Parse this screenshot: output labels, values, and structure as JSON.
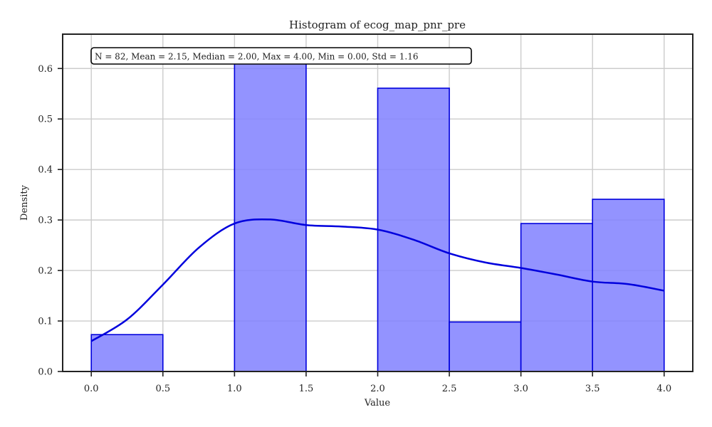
{
  "chart_data": {
    "type": "bar",
    "title": "Histogram of ecog_map_pnr_pre",
    "xlabel": "Value",
    "ylabel": "Density",
    "xlim": [
      -0.2,
      4.2
    ],
    "ylim": [
      0,
      0.668
    ],
    "xticks": [
      "0.0",
      "0.5",
      "1.0",
      "1.5",
      "2.0",
      "2.5",
      "3.0",
      "3.5",
      "4.0"
    ],
    "yticks": [
      "0.0",
      "0.1",
      "0.2",
      "0.3",
      "0.4",
      "0.5",
      "0.6"
    ],
    "grid": true,
    "bins": [
      {
        "x0": 0.0,
        "x1": 0.5,
        "density": 0.073
      },
      {
        "x0": 0.5,
        "x1": 1.0,
        "density": 0.0
      },
      {
        "x0": 1.0,
        "x1": 1.5,
        "density": 0.61
      },
      {
        "x0": 1.5,
        "x1": 2.0,
        "density": 0.0
      },
      {
        "x0": 2.0,
        "x1": 2.5,
        "density": 0.561
      },
      {
        "x0": 2.5,
        "x1": 3.0,
        "density": 0.098
      },
      {
        "x0": 3.0,
        "x1": 3.5,
        "density": 0.293
      },
      {
        "x0": 3.5,
        "x1": 4.0,
        "density": 0.341
      }
    ],
    "kde": {
      "x": [
        0.0,
        0.25,
        0.5,
        0.75,
        1.0,
        1.25,
        1.5,
        1.75,
        2.0,
        2.25,
        2.5,
        2.75,
        3.0,
        3.25,
        3.5,
        3.75,
        4.0
      ],
      "y": [
        0.06,
        0.103,
        0.172,
        0.245,
        0.293,
        0.301,
        0.29,
        0.287,
        0.281,
        0.261,
        0.234,
        0.216,
        0.205,
        0.192,
        0.178,
        0.173,
        0.16
      ]
    },
    "stats_box": "N = 82, Mean = 2.15, Median = 2.00, Max = 4.00, Min = 0.00, Std = 1.16",
    "colors": {
      "bar_fill": "#8080ff",
      "bar_edge": "#0000dd",
      "kde_line": "#0000dd",
      "grid": "#cccccc",
      "axis": "#222222"
    }
  }
}
